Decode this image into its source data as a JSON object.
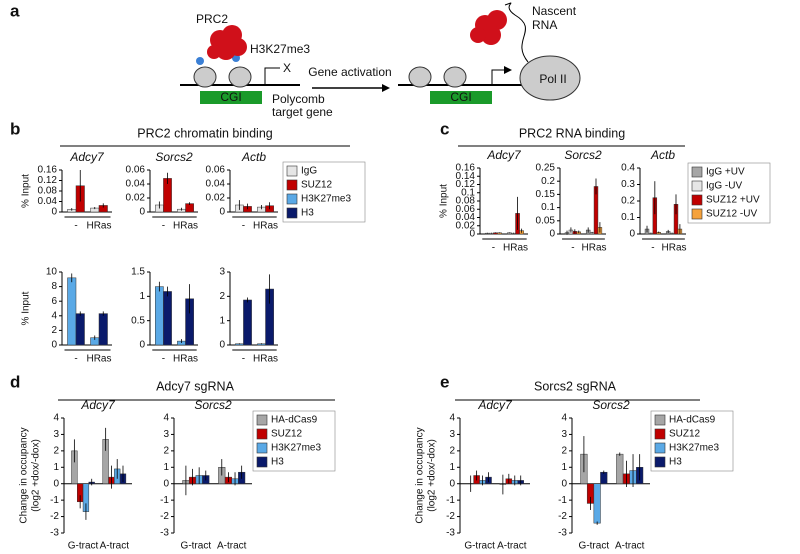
{
  "figure": {
    "panel_labels": [
      "a",
      "b",
      "c",
      "d",
      "e"
    ],
    "headers": [
      "PRC2 chromatin binding",
      "PRC2 RNA binding",
      "Adcy7 sgRNA",
      "Sorcs2 sgRNA"
    ]
  },
  "diagram": {
    "prc2": "PRC2",
    "mark": "H3K27me3",
    "blocked": "X",
    "cgi_left": "CGI",
    "gene": [
      "Polycomb",
      "target gene"
    ],
    "arrow": "Gene activation",
    "cgi_right": "CGI",
    "rna": [
      "Nascent",
      "RNA"
    ],
    "polii": "Pol II"
  },
  "chart_data": [
    {
      "type": "bar",
      "title": "Adcy7",
      "ylabel": "% Input",
      "category_underline": true,
      "categories": [
        "-",
        "HRas"
      ],
      "ylim": [
        0,
        0.16
      ],
      "yticks": [
        0,
        0.04,
        0.08,
        0.12,
        0.16
      ],
      "series": [
        {
          "name": "IgG",
          "color": "#e6e6e6",
          "values": [
            0.01,
            0.015
          ],
          "errors": [
            0.005,
            0.004
          ]
        },
        {
          "name": "SUZ12",
          "color": "#c00000",
          "values": [
            0.1,
            0.025
          ],
          "errors": [
            0.06,
            0.008
          ]
        }
      ]
    },
    {
      "type": "bar",
      "title": "Sorcs2",
      "category_underline": true,
      "categories": [
        "-",
        "HRas"
      ],
      "ylim": [
        0,
        0.06
      ],
      "yticks": [
        0,
        0.02,
        0.04,
        0.06
      ],
      "series": [
        {
          "name": "IgG",
          "color": "#e6e6e6",
          "values": [
            0.01,
            0.004
          ],
          "errors": [
            0.005,
            0.002
          ]
        },
        {
          "name": "SUZ12",
          "color": "#c00000",
          "values": [
            0.048,
            0.012
          ],
          "errors": [
            0.008,
            0.002
          ]
        }
      ]
    },
    {
      "type": "bar",
      "title": "Actb",
      "category_underline": true,
      "categories": [
        "-",
        "HRas"
      ],
      "ylim": [
        0,
        0.06
      ],
      "yticks": [
        0,
        0.02,
        0.04,
        0.06
      ],
      "series": [
        {
          "name": "IgG",
          "color": "#e6e6e6",
          "values": [
            0.01,
            0.007
          ],
          "errors": [
            0.007,
            0.003
          ]
        },
        {
          "name": "SUZ12",
          "color": "#c00000",
          "values": [
            0.008,
            0.009
          ],
          "errors": [
            0.004,
            0.005
          ]
        }
      ]
    },
    {
      "type": "bar",
      "ylabel": "% Input",
      "category_underline": true,
      "categories": [
        "-",
        "HRas"
      ],
      "ylim": [
        0,
        10
      ],
      "yticks": [
        0,
        2,
        4,
        6,
        8,
        10
      ],
      "series": [
        {
          "name": "H3K27me3",
          "color": "#5aa9e6",
          "values": [
            9.2,
            1
          ],
          "errors": [
            0.6,
            0.3
          ]
        },
        {
          "name": "H3",
          "color": "#0a1a6b",
          "values": [
            4.3,
            4.3
          ],
          "errors": [
            0.3,
            0.3
          ]
        }
      ]
    },
    {
      "type": "bar",
      "category_underline": true,
      "categories": [
        "-",
        "HRas"
      ],
      "ylim": [
        0,
        1.5
      ],
      "yticks": [
        0,
        0.5,
        1,
        1.5
      ],
      "series": [
        {
          "name": "H3K27me3",
          "color": "#5aa9e6",
          "values": [
            1.2,
            0.08
          ],
          "errors": [
            0.1,
            0.04
          ]
        },
        {
          "name": "H3",
          "color": "#0a1a6b",
          "values": [
            1.1,
            0.95
          ],
          "errors": [
            0.1,
            0.3
          ]
        }
      ]
    },
    {
      "type": "bar",
      "category_underline": true,
      "categories": [
        "-",
        "HRas"
      ],
      "ylim": [
        0,
        3
      ],
      "yticks": [
        0,
        1,
        2,
        3
      ],
      "series": [
        {
          "name": "H3K27me3",
          "color": "#5aa9e6",
          "values": [
            0.05,
            0.05
          ],
          "errors": [
            0.02,
            0.02
          ]
        },
        {
          "name": "H3",
          "color": "#0a1a6b",
          "values": [
            1.85,
            2.3
          ],
          "errors": [
            0.1,
            0.6
          ]
        }
      ]
    },
    {
      "type": "bar",
      "title": "Adcy7",
      "ylabel": "% Input",
      "category_underline": true,
      "categories": [
        "-",
        "HRas"
      ],
      "ylim": [
        0,
        0.16
      ],
      "yticks": [
        0,
        0.02,
        0.04,
        0.06,
        0.08,
        0.1,
        0.12,
        0.14,
        0.16
      ],
      "series": [
        {
          "name": "IgG +UV",
          "color": "#a6a6a6",
          "values": [
            0.002,
            0.003
          ],
          "errors": [
            0.001,
            0.001
          ]
        },
        {
          "name": "IgG -UV",
          "color": "#e6e6e6",
          "values": [
            0.002,
            0.002
          ],
          "errors": [
            0.001,
            0.001
          ]
        },
        {
          "name": "SUZ12 +UV",
          "color": "#c00000",
          "values": [
            0.003,
            0.05
          ],
          "errors": [
            0.001,
            0.04
          ]
        },
        {
          "name": "SUZ12 -UV",
          "color": "#f5a23c",
          "values": [
            0.003,
            0.008
          ],
          "errors": [
            0.001,
            0.005
          ]
        }
      ]
    },
    {
      "type": "bar",
      "title": "Sorcs2",
      "category_underline": true,
      "categories": [
        "-",
        "HRas"
      ],
      "ylim": [
        0,
        0.25
      ],
      "yticks": [
        0,
        0.05,
        0.1,
        0.15,
        0.2,
        0.25
      ],
      "series": [
        {
          "name": "IgG +UV",
          "color": "#a6a6a6",
          "values": [
            0.005,
            0.015
          ],
          "errors": [
            0.008,
            0.01
          ]
        },
        {
          "name": "IgG -UV",
          "color": "#e6e6e6",
          "values": [
            0.015,
            0.005
          ],
          "errors": [
            0.01,
            0.003
          ]
        },
        {
          "name": "SUZ12 +UV",
          "color": "#c00000",
          "values": [
            0.01,
            0.18
          ],
          "errors": [
            0.008,
            0.03
          ]
        },
        {
          "name": "SUZ12 -UV",
          "color": "#f5a23c",
          "values": [
            0.008,
            0.025
          ],
          "errors": [
            0.005,
            0.02
          ]
        }
      ]
    },
    {
      "type": "bar",
      "title": "Actb",
      "category_underline": true,
      "categories": [
        "-",
        "HRas"
      ],
      "ylim": [
        0,
        0.4
      ],
      "yticks": [
        0,
        0.1,
        0.2,
        0.3,
        0.4
      ],
      "series": [
        {
          "name": "IgG +UV",
          "color": "#a6a6a6",
          "values": [
            0.03,
            0.015
          ],
          "errors": [
            0.02,
            0.01
          ]
        },
        {
          "name": "IgG -UV",
          "color": "#e6e6e6",
          "values": [
            0.005,
            0.005
          ],
          "errors": [
            0.003,
            0.003
          ]
        },
        {
          "name": "SUZ12 +UV",
          "color": "#c00000",
          "values": [
            0.22,
            0.18
          ],
          "errors": [
            0.1,
            0.06
          ]
        },
        {
          "name": "SUZ12 -UV",
          "color": "#f5a23c",
          "values": [
            0.01,
            0.03
          ],
          "errors": [
            0.005,
            0.03
          ]
        }
      ]
    },
    {
      "type": "bar",
      "title": "Adcy7",
      "ylabel": [
        "Change in occupancy",
        "(log2 +dox/-dox)"
      ],
      "categories": [
        "G-tract",
        "A-tract"
      ],
      "ylim": [
        -3,
        4
      ],
      "yticks": [
        -3,
        -2,
        -1,
        0,
        1,
        2,
        3,
        4
      ],
      "series": [
        {
          "name": "HA-dCas9",
          "color": "#a6a6a6",
          "values": [
            2,
            2.7
          ],
          "errors": [
            0.7,
            0.7
          ]
        },
        {
          "name": "SUZ12",
          "color": "#c00000",
          "values": [
            -1.1,
            0.4
          ],
          "errors": [
            0.4,
            0.7
          ]
        },
        {
          "name": "H3K27me3",
          "color": "#5aa9e6",
          "values": [
            -1.7,
            0.9
          ],
          "errors": [
            0.5,
            0.6
          ]
        },
        {
          "name": "H3",
          "color": "#0a1a6b",
          "values": [
            0.1,
            0.6
          ],
          "errors": [
            0.2,
            0.5
          ]
        }
      ]
    },
    {
      "type": "bar",
      "title": "Sorcs2",
      "categories": [
        "G-tract",
        "A-tract"
      ],
      "ylim": [
        -3,
        4
      ],
      "yticks": [
        -3,
        -2,
        -1,
        0,
        1,
        2,
        3,
        4
      ],
      "series": [
        {
          "name": "HA-dCas9",
          "color": "#a6a6a6",
          "values": [
            0.2,
            1
          ],
          "errors": [
            0.9,
            0.5
          ]
        },
        {
          "name": "SUZ12",
          "color": "#c00000",
          "values": [
            0.4,
            0.4
          ],
          "errors": [
            0.5,
            0.3
          ]
        },
        {
          "name": "H3K27me3",
          "color": "#5aa9e6",
          "values": [
            0.5,
            0.3
          ],
          "errors": [
            0.5,
            0.4
          ]
        },
        {
          "name": "H3",
          "color": "#0a1a6b",
          "values": [
            0.5,
            0.7
          ],
          "errors": [
            0.3,
            0.4
          ]
        }
      ]
    },
    {
      "type": "bar",
      "title": "Adcy7",
      "ylabel": [
        "Change in occupancy",
        "(log2 +dox/-dox)"
      ],
      "categories": [
        "G-tract",
        "A-tract"
      ],
      "ylim": [
        -3,
        4
      ],
      "yticks": [
        -3,
        -2,
        -1,
        0,
        1,
        2,
        3,
        4
      ],
      "series": [
        {
          "name": "HA-dCas9",
          "color": "#a6a6a6",
          "values": [
            0,
            -0.05
          ],
          "errors": [
            0.5,
            0.6
          ]
        },
        {
          "name": "SUZ12",
          "color": "#c00000",
          "values": [
            0.5,
            0.3
          ],
          "errors": [
            0.3,
            0.3
          ]
        },
        {
          "name": "H3K27me3",
          "color": "#5aa9e6",
          "values": [
            0.2,
            0.2
          ],
          "errors": [
            0.3,
            0.3
          ]
        },
        {
          "name": "H3",
          "color": "#0a1a6b",
          "values": [
            0.4,
            0.2
          ],
          "errors": [
            0.3,
            0.3
          ]
        }
      ]
    },
    {
      "type": "bar",
      "title": "Sorcs2",
      "categories": [
        "G-tract",
        "A-tract"
      ],
      "ylim": [
        -3,
        4
      ],
      "yticks": [
        -3,
        -2,
        -1,
        0,
        1,
        2,
        3,
        4
      ],
      "series": [
        {
          "name": "HA-dCas9",
          "color": "#a6a6a6",
          "values": [
            1.8,
            1.8
          ],
          "errors": [
            1.1,
            0.1
          ]
        },
        {
          "name": "SUZ12",
          "color": "#c00000",
          "values": [
            -1.2,
            0.6
          ],
          "errors": [
            0.4,
            0.8
          ]
        },
        {
          "name": "H3K27me3",
          "color": "#5aa9e6",
          "values": [
            -2.4,
            0.8
          ],
          "errors": [
            0.1,
            1
          ]
        },
        {
          "name": "H3",
          "color": "#0a1a6b",
          "values": [
            0.7,
            1
          ],
          "errors": [
            0.1,
            0.8
          ]
        }
      ]
    }
  ]
}
